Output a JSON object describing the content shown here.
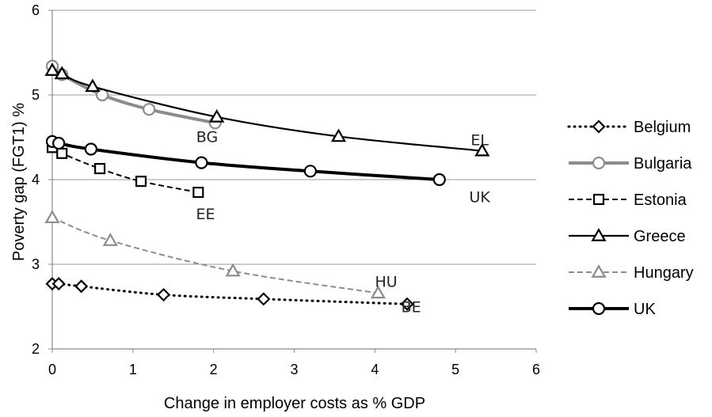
{
  "chart_data": {
    "type": "line",
    "title": "",
    "xlabel": "Change in employer costs as % GDP",
    "ylabel": "Poverty gap (FGT1)  %",
    "xlim": [
      0,
      6
    ],
    "ylim": [
      2,
      6
    ],
    "xticks": [
      0,
      1,
      2,
      3,
      4,
      5,
      6
    ],
    "yticks": [
      2,
      3,
      4,
      5,
      6
    ],
    "grid": "horizontal",
    "legend_position": "right",
    "series": [
      {
        "name": "Belgium",
        "color": "#000000",
        "line_style": "dotted",
        "marker": "diamond",
        "x": [
          0.0,
          0.08,
          0.36,
          1.38,
          2.62,
          4.4
        ],
        "y": [
          2.77,
          2.77,
          2.74,
          2.64,
          2.59,
          2.53
        ]
      },
      {
        "name": "Bulgaria",
        "color": "#8c8c8c",
        "line_style": "solid",
        "marker": "circle",
        "x": [
          0.0,
          0.12,
          0.62,
          1.2,
          2.02
        ],
        "y": [
          5.34,
          5.24,
          5.0,
          4.83,
          4.67
        ]
      },
      {
        "name": "Estonia",
        "color": "#000000",
        "line_style": "dashed",
        "marker": "square",
        "x": [
          0.0,
          0.12,
          0.59,
          1.1,
          1.81
        ],
        "y": [
          4.38,
          4.31,
          4.13,
          3.98,
          3.85
        ]
      },
      {
        "name": "Greece",
        "color": "#000000",
        "line_style": "solid",
        "marker": "triangle",
        "x": [
          0.0,
          0.12,
          0.5,
          2.04,
          3.55,
          5.33
        ],
        "y": [
          5.29,
          5.25,
          5.1,
          4.74,
          4.51,
          4.34
        ]
      },
      {
        "name": "Hungary",
        "color": "#8c8c8c",
        "line_style": "dashed",
        "marker": "triangle",
        "x": [
          0.0,
          0.72,
          2.24,
          4.04
        ],
        "y": [
          3.55,
          3.28,
          2.92,
          2.66
        ]
      },
      {
        "name": "UK",
        "color": "#000000",
        "line_style": "thick",
        "marker": "circle",
        "x": [
          0.0,
          0.08,
          0.48,
          1.85,
          3.2,
          4.8
        ],
        "y": [
          4.45,
          4.43,
          4.36,
          4.2,
          4.1,
          4.0
        ]
      }
    ],
    "annotations": [
      {
        "text": "BG",
        "x": 1.92,
        "y": 4.51
      },
      {
        "text": "EL",
        "x": 5.3,
        "y": 4.47
      },
      {
        "text": "UK",
        "x": 5.3,
        "y": 3.8
      },
      {
        "text": "EE",
        "x": 1.9,
        "y": 3.6
      },
      {
        "text": "HU",
        "x": 4.14,
        "y": 2.8
      },
      {
        "text": "BE",
        "x": 4.45,
        "y": 2.5
      }
    ]
  }
}
